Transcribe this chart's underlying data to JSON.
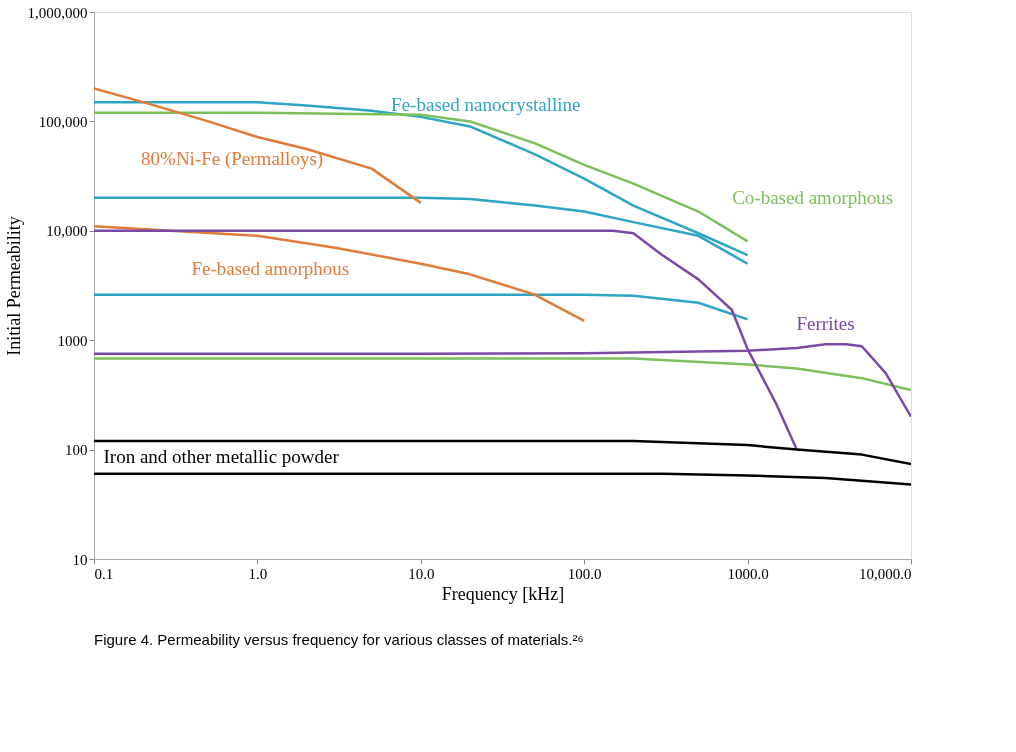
{
  "chart_data": {
    "type": "line",
    "xlabel": "Frequency [kHz]",
    "ylabel": "Initial Permeability",
    "log": "xy",
    "xlim": [
      0.1,
      10000
    ],
    "ylim": [
      10,
      1000000
    ],
    "xticks": [
      {
        "value": 0.1,
        "label": "0.1"
      },
      {
        "value": 1,
        "label": "1.0"
      },
      {
        "value": 10,
        "label": "10.0"
      },
      {
        "value": 100,
        "label": "100.0"
      },
      {
        "value": 1000,
        "label": "1000.0"
      },
      {
        "value": 10000,
        "label": "10,000.0"
      }
    ],
    "yticks": [
      10,
      100,
      1000,
      {
        "value": 10000,
        "label": "10,000"
      },
      {
        "value": 100000,
        "label": "100,000"
      },
      {
        "value": 1000000,
        "label": "1,000,000"
      }
    ],
    "grid": false,
    "legend": false,
    "marker": "none",
    "line_style": "solid",
    "annotations": [
      "Figure 4.  Permeability versus frequency for various classes of materials.²⁶"
    ],
    "series": [
      {
        "name": "Fe-based nanocrystalline",
        "color": "#2ea5c5",
        "x": [
          0.1,
          0.5,
          1,
          2,
          5,
          10,
          20,
          50,
          100,
          200,
          500,
          1000
        ],
        "values": [
          150000,
          150000,
          150000,
          140000,
          125000,
          110000,
          90000,
          50000,
          30000,
          17000,
          9500,
          6000
        ]
      },
      {
        "color": "#2ea5c5",
        "x": [
          0.1,
          1,
          10,
          20,
          50,
          100,
          200,
          500,
          1000
        ],
        "values": [
          20000,
          20000,
          20000,
          19500,
          17000,
          15000,
          12000,
          9000,
          5000
        ]
      },
      {
        "color": "#2ea5c5",
        "x": [
          0.1,
          1,
          10,
          100,
          200,
          500,
          1000
        ],
        "values": [
          2600,
          2600,
          2600,
          2600,
          2550,
          2200,
          1550
        ]
      },
      {
        "name": "Co-based amorphous",
        "color": "#7cbf5c",
        "x": [
          0.1,
          1,
          10,
          20,
          50,
          100,
          200,
          500,
          1000
        ],
        "values": [
          120000,
          120000,
          115000,
          100000,
          63000,
          40000,
          27000,
          15000,
          8000
        ]
      },
      {
        "color": "#7cbf5c",
        "x": [
          0.1,
          1,
          10,
          100,
          200,
          1000,
          2000,
          5000,
          10000
        ],
        "values": [
          680,
          680,
          680,
          680,
          680,
          600,
          550,
          450,
          350
        ]
      },
      {
        "name": "80%Ni-Fe (Permalloys)",
        "color": "#e07b39",
        "x": [
          0.1,
          0.2,
          0.5,
          1,
          2,
          5,
          10
        ],
        "values": [
          200000,
          150000,
          100000,
          72000,
          56000,
          37000,
          18000
        ]
      },
      {
        "name": "Fe-based amorphous",
        "color": "#e07b39",
        "x": [
          0.1,
          1,
          3,
          10,
          20,
          50,
          100
        ],
        "values": [
          11000,
          9000,
          7000,
          5000,
          4000,
          2600,
          1500
        ]
      },
      {
        "name": "Ferrites",
        "color": "#7b4aa6",
        "x": [
          0.1,
          1,
          10,
          100,
          150,
          200,
          300,
          500,
          800,
          1000,
          1500,
          2000
        ],
        "values": [
          10000,
          10000,
          10000,
          10000,
          10000,
          9500,
          6000,
          3600,
          1900,
          830,
          260,
          100
        ]
      },
      {
        "color": "#7b4aa6",
        "x": [
          0.1,
          10,
          100,
          1000,
          2000,
          3000,
          4000,
          5000,
          7000,
          10000
        ],
        "values": [
          750,
          750,
          760,
          800,
          850,
          920,
          920,
          880,
          500,
          200
        ]
      },
      {
        "name": "Iron and other metallic powder",
        "color": "#000000",
        "x": [
          0.1,
          1,
          10,
          100,
          200,
          1000,
          2000,
          5000,
          10000
        ],
        "values": [
          120,
          120,
          120,
          120,
          120,
          110,
          100,
          90,
          74
        ]
      },
      {
        "color": "#000000",
        "x": [
          0.1,
          1,
          10,
          100,
          300,
          1000,
          3000,
          10000
        ],
        "values": [
          60,
          60,
          60,
          60,
          60,
          58,
          55,
          48
        ]
      }
    ]
  }
}
